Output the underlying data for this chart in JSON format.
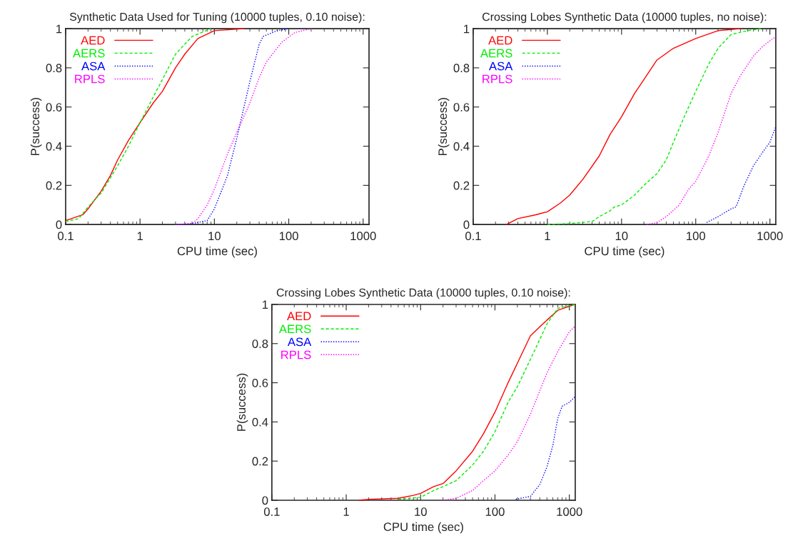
{
  "chart_data": [
    {
      "type": "line",
      "title": "Synthetic Data Used for Tuning (10000 tuples, 0.10 noise):",
      "xlabel": "CPU time (sec)",
      "ylabel": "P(success)",
      "log": "x",
      "xlim": [
        0.1,
        1200
      ],
      "xticks": [
        0.1,
        1,
        10,
        100,
        1000
      ],
      "ylim": [
        0,
        1
      ],
      "yticks": [
        0,
        0.2,
        0.4,
        0.6,
        0.8,
        1
      ],
      "grid": false,
      "legend": "top left",
      "series": [
        {
          "name": "AED",
          "color": "#ff0000",
          "line_style": "solid",
          "x": [
            0.1,
            0.12,
            0.17,
            0.2,
            0.3,
            0.4,
            0.5,
            0.7,
            1,
            1.5,
            2,
            3,
            4,
            6,
            10,
            25
          ],
          "values": [
            0.02,
            0.03,
            0.05,
            0.08,
            0.17,
            0.25,
            0.33,
            0.43,
            0.52,
            0.62,
            0.68,
            0.8,
            0.87,
            0.95,
            0.99,
            1.0
          ]
        },
        {
          "name": "AERS",
          "color": "#00ee00",
          "line_style": "dashed",
          "x": [
            0.1,
            0.15,
            0.2,
            0.3,
            0.5,
            0.7,
            1,
            1.5,
            2,
            3,
            5,
            9
          ],
          "values": [
            0.015,
            0.03,
            0.09,
            0.16,
            0.3,
            0.4,
            0.52,
            0.65,
            0.74,
            0.87,
            0.96,
            1.0
          ]
        },
        {
          "name": "ASA",
          "color": "#0000ff",
          "line_style": "dotted",
          "x": [
            3.2,
            5,
            8,
            10,
            15,
            20,
            25,
            30,
            40,
            45,
            70,
            100
          ],
          "values": [
            0,
            0.005,
            0.02,
            0.08,
            0.25,
            0.44,
            0.6,
            0.73,
            0.92,
            0.96,
            0.99,
            1.0
          ]
        },
        {
          "name": "RPLS",
          "color": "#ff00ff",
          "line_style": "dotted",
          "x": [
            3,
            5,
            6,
            8,
            10,
            15,
            20,
            30,
            40,
            50,
            80,
            120,
            200
          ],
          "values": [
            0,
            0.005,
            0.03,
            0.1,
            0.18,
            0.36,
            0.47,
            0.62,
            0.75,
            0.83,
            0.93,
            0.98,
            1.0
          ]
        }
      ]
    },
    {
      "type": "line",
      "title": "Crossing Lobes Synthetic Data (10000 tuples, no noise):",
      "xlabel": "CPU time (sec)",
      "ylabel": "P(success)",
      "log": "x",
      "xlim": [
        0.1,
        1200
      ],
      "xticks": [
        0.1,
        1,
        10,
        100,
        1000
      ],
      "ylim": [
        0,
        1
      ],
      "yticks": [
        0,
        0.2,
        0.4,
        0.6,
        0.8,
        1
      ],
      "grid": false,
      "legend": "top left",
      "series": [
        {
          "name": "AED",
          "color": "#ff0000",
          "line_style": "solid",
          "x": [
            0.28,
            0.4,
            0.7,
            1,
            1.5,
            2,
            3,
            5,
            7,
            10,
            15,
            20,
            30,
            50,
            100,
            200,
            400
          ],
          "values": [
            0,
            0.03,
            0.05,
            0.065,
            0.11,
            0.15,
            0.23,
            0.35,
            0.46,
            0.55,
            0.67,
            0.74,
            0.84,
            0.9,
            0.95,
            0.99,
            1.0
          ]
        },
        {
          "name": "AERS",
          "color": "#00ee00",
          "line_style": "dashed",
          "x": [
            1,
            2,
            4,
            5,
            7,
            8,
            10,
            15,
            20,
            30,
            40,
            50,
            70,
            100,
            150,
            200,
            300,
            500,
            800
          ],
          "values": [
            0,
            0.005,
            0.015,
            0.04,
            0.07,
            0.09,
            0.1,
            0.15,
            0.2,
            0.26,
            0.33,
            0.42,
            0.55,
            0.68,
            0.82,
            0.9,
            0.97,
            0.99,
            1.0
          ]
        },
        {
          "name": "ASA",
          "color": "#0000ff",
          "line_style": "dotted",
          "x": [
            140,
            200,
            300,
            350,
            450,
            600,
            800,
            1000,
            1200
          ],
          "values": [
            0.01,
            0.04,
            0.08,
            0.09,
            0.2,
            0.3,
            0.37,
            0.42,
            0.5
          ]
        },
        {
          "name": "RPLS",
          "color": "#ff00ff",
          "line_style": "dotted",
          "x": [
            22,
            30,
            40,
            60,
            80,
            100,
            150,
            200,
            300,
            400,
            600,
            800,
            1200
          ],
          "values": [
            0,
            0.01,
            0.04,
            0.1,
            0.18,
            0.22,
            0.35,
            0.47,
            0.67,
            0.76,
            0.86,
            0.91,
            0.96
          ]
        }
      ]
    },
    {
      "type": "line",
      "title": "Crossing Lobes Synthetic Data (10000 tuples, 0.10 noise):",
      "xlabel": "CPU time (sec)",
      "ylabel": "P(success)",
      "log": "x",
      "xlim": [
        0.1,
        1200
      ],
      "xticks": [
        0.1,
        1,
        10,
        100,
        1000
      ],
      "ylim": [
        0,
        1
      ],
      "yticks": [
        0,
        0.2,
        0.4,
        0.6,
        0.8,
        1
      ],
      "grid": false,
      "legend": "top left",
      "series": [
        {
          "name": "AED",
          "color": "#ff0000",
          "line_style": "solid",
          "x": [
            1.5,
            2,
            5,
            8,
            10,
            15,
            20,
            30,
            50,
            70,
            100,
            150,
            200,
            300,
            500,
            700,
            1200
          ],
          "values": [
            0,
            0.005,
            0.01,
            0.025,
            0.035,
            0.07,
            0.085,
            0.15,
            0.25,
            0.34,
            0.45,
            0.6,
            0.7,
            0.84,
            0.92,
            0.97,
            1.0
          ]
        },
        {
          "name": "AERS",
          "color": "#00ee00",
          "line_style": "dashed",
          "x": [
            5,
            10,
            15,
            20,
            30,
            50,
            70,
            100,
            150,
            200,
            300,
            500,
            700,
            1200
          ],
          "values": [
            0.005,
            0.015,
            0.05,
            0.07,
            0.1,
            0.18,
            0.25,
            0.35,
            0.5,
            0.58,
            0.72,
            0.9,
            0.98,
            1.0
          ]
        },
        {
          "name": "ASA",
          "color": "#0000ff",
          "line_style": "dotted",
          "x": [
            190,
            300,
            400,
            500,
            600,
            700,
            800,
            1000,
            1200
          ],
          "values": [
            0.005,
            0.02,
            0.08,
            0.17,
            0.28,
            0.42,
            0.48,
            0.5,
            0.53
          ]
        },
        {
          "name": "RPLS",
          "color": "#ff00ff",
          "line_style": "dotted",
          "x": [
            20,
            30,
            50,
            70,
            100,
            150,
            200,
            300,
            500,
            700,
            1000,
            1200
          ],
          "values": [
            0,
            0.01,
            0.05,
            0.1,
            0.15,
            0.23,
            0.3,
            0.44,
            0.65,
            0.76,
            0.86,
            0.89
          ]
        }
      ]
    }
  ]
}
